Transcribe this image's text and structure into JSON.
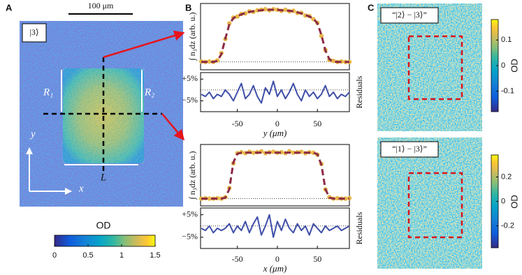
{
  "panel_labels": [
    "A",
    "B",
    "C"
  ],
  "panel_a": {
    "scale_bar": "100 μm",
    "state": "|3⟩",
    "r1": "R₁",
    "r2": "R₂",
    "l": "L",
    "y_axis": "y",
    "x_axis": "x",
    "colorbar": {
      "title": "OD",
      "clim": [
        0,
        1.5
      ],
      "ticks": [
        0,
        0.5,
        1,
        1.5
      ]
    }
  },
  "panel_c": [
    {
      "label": "“|2⟩ − |3⟩”",
      "colorbar": {
        "title": "OD",
        "clim": [
          -0.18,
          0.18
        ],
        "ticks": [
          0.1,
          0,
          -0.1
        ]
      }
    },
    {
      "label": "“|1⟩ − |3⟩”",
      "colorbar": {
        "title": "OD",
        "clim": [
          -0.38,
          0.38
        ],
        "ticks": [
          0.2,
          0,
          -0.2
        ]
      }
    }
  ],
  "chart_data": [
    {
      "type": "line",
      "ylabel": "∫ n₃dz (arb. u.)",
      "x": [
        -95,
        -90,
        -85,
        -80,
        -75,
        -70,
        -65,
        -60,
        -55,
        -50,
        -45,
        -40,
        -35,
        -30,
        -25,
        -20,
        -15,
        -10,
        -5,
        0,
        5,
        10,
        15,
        20,
        25,
        30,
        35,
        40,
        45,
        50,
        55,
        60,
        65,
        70,
        75,
        80,
        85,
        90
      ],
      "xlim": [
        -96,
        90
      ],
      "ylim": [
        -0.15,
        1.12
      ],
      "series": [
        {
          "style": "markers",
          "color": "#e8b84a",
          "values": [
            0.01,
            0,
            0.01,
            0,
            0.03,
            0.17,
            0.44,
            0.74,
            0.85,
            0.87,
            0.92,
            0.93,
            0.97,
            0.96,
            0.99,
            1.0,
            1.01,
            0.99,
            1.01,
            1.0,
            0.98,
            1.0,
            0.97,
            0.98,
            0.94,
            0.94,
            0.89,
            0.88,
            0.82,
            0.75,
            0.5,
            0.23,
            0.04,
            0.02,
            0,
            0.01,
            0,
            0
          ]
        },
        {
          "style": "dashed",
          "color": "#8b2a45",
          "values": [
            0,
            0,
            0,
            0,
            0.02,
            0.15,
            0.45,
            0.72,
            0.84,
            0.88,
            0.91,
            0.94,
            0.96,
            0.97,
            0.98,
            0.99,
            1.0,
            1.0,
            1.0,
            1.0,
            0.99,
            0.99,
            0.98,
            0.97,
            0.95,
            0.93,
            0.9,
            0.87,
            0.83,
            0.74,
            0.52,
            0.22,
            0.05,
            0.01,
            0,
            0,
            0,
            0
          ]
        }
      ]
    },
    {
      "type": "line",
      "ylabel": "Residuals",
      "xlabel": "y (μm)",
      "x": [
        -95,
        -90,
        -85,
        -80,
        -75,
        -70,
        -65,
        -60,
        -55,
        -50,
        -45,
        -40,
        -35,
        -30,
        -25,
        -20,
        -15,
        -10,
        -5,
        0,
        5,
        10,
        15,
        20,
        25,
        30,
        35,
        40,
        45,
        50,
        55,
        60,
        65,
        70,
        75,
        80,
        85,
        90
      ],
      "xlim": [
        -96,
        90
      ],
      "ylim": [
        -10,
        8
      ],
      "xticks": [
        -50,
        0,
        50
      ],
      "yticks": [
        {
          "value": 5,
          "label": "+5%"
        },
        {
          "value": -5,
          "label": "−5%"
        }
      ],
      "series": [
        {
          "style": "line",
          "color": "#3f4fa8",
          "values": [
            -2,
            -3,
            -1,
            -4,
            -2,
            -3,
            0,
            -2,
            -5,
            -1,
            3,
            -4,
            -2,
            2,
            -3,
            -6,
            1,
            -2,
            4,
            -3,
            0,
            -4,
            -1,
            3,
            -2,
            -5,
            0,
            -3,
            -1,
            -4,
            -2,
            2,
            -3,
            -1,
            -4,
            -2,
            -3,
            -1
          ]
        }
      ]
    },
    {
      "type": "line",
      "ylabel": "∫ n₃dz (arb. u.)",
      "x": [
        -95,
        -90,
        -85,
        -80,
        -75,
        -70,
        -65,
        -60,
        -55,
        -50,
        -45,
        -40,
        -35,
        -30,
        -25,
        -20,
        -15,
        -10,
        -5,
        0,
        5,
        10,
        15,
        20,
        25,
        30,
        35,
        40,
        45,
        50,
        55,
        60,
        65,
        70,
        75,
        80,
        85,
        90
      ],
      "xlim": [
        -96,
        90
      ],
      "ylim": [
        -0.15,
        1.12
      ],
      "series": [
        {
          "style": "markers",
          "color": "#e8b84a",
          "values": [
            0,
            0.01,
            0,
            0,
            0.01,
            0,
            0.03,
            0.22,
            0.73,
            0.94,
            0.96,
            0.94,
            0.97,
            0.95,
            0.96,
            0.98,
            0.94,
            0.96,
            0.97,
            0.95,
            0.96,
            0.94,
            0.98,
            0.95,
            0.96,
            0.97,
            0.94,
            0.96,
            0.95,
            0.91,
            0.72,
            0.19,
            0.03,
            0,
            0.01,
            0,
            0,
            0.01
          ]
        },
        {
          "style": "dashed",
          "color": "#8b2a45",
          "values": [
            0,
            0,
            0,
            0,
            0,
            0,
            0.02,
            0.2,
            0.75,
            0.93,
            0.95,
            0.95,
            0.95,
            0.95,
            0.95,
            0.95,
            0.95,
            0.95,
            0.95,
            0.95,
            0.95,
            0.95,
            0.95,
            0.95,
            0.95,
            0.95,
            0.95,
            0.95,
            0.95,
            0.92,
            0.7,
            0.2,
            0.02,
            0,
            0,
            0,
            0,
            0
          ]
        }
      ]
    },
    {
      "type": "line",
      "ylabel": "Residuals",
      "xlabel": "x (μm)",
      "x": [
        -95,
        -90,
        -85,
        -80,
        -75,
        -70,
        -65,
        -60,
        -55,
        -50,
        -45,
        -40,
        -35,
        -30,
        -25,
        -20,
        -15,
        -10,
        -5,
        0,
        5,
        10,
        15,
        20,
        25,
        30,
        35,
        40,
        45,
        50,
        55,
        60,
        65,
        70,
        75,
        80,
        85,
        90
      ],
      "xlim": [
        -96,
        90
      ],
      "ylim": [
        -10,
        8
      ],
      "xticks": [
        -50,
        0,
        50
      ],
      "yticks": [
        {
          "value": 5,
          "label": "+5%"
        },
        {
          "value": -5,
          "label": "−5%"
        }
      ],
      "series": [
        {
          "style": "line",
          "color": "#3f4fa8",
          "values": [
            -1,
            -2,
            0,
            -3,
            -1,
            -2,
            -1,
            1,
            -3,
            0,
            -2,
            2,
            -3,
            1,
            4,
            -4,
            0,
            5,
            -5,
            2,
            -2,
            3,
            -1,
            -3,
            1,
            -2,
            0,
            -4,
            1,
            -1,
            -3,
            0,
            -2,
            -1,
            0,
            -2,
            -1,
            0
          ]
        }
      ]
    }
  ]
}
